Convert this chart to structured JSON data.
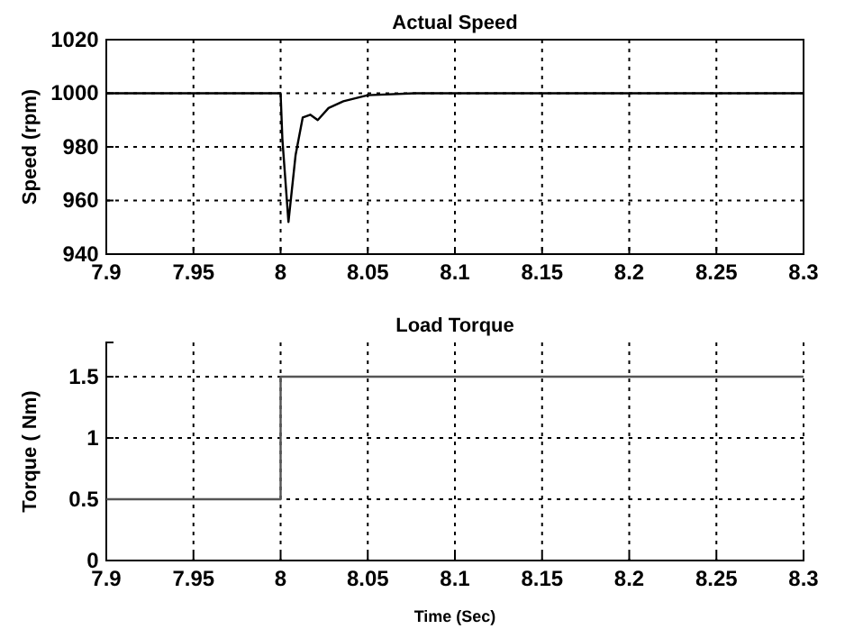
{
  "chart_data": [
    {
      "type": "line",
      "title": "Actual Speed",
      "ylabel": "Speed (rpm)",
      "xlim": [
        7.9,
        8.3
      ],
      "xticks": [
        7.9,
        7.95,
        8,
        8.05,
        8.1,
        8.15,
        8.2,
        8.25,
        8.3
      ],
      "ylim": [
        940,
        1020
      ],
      "yticks": [
        940,
        960,
        980,
        1000,
        1020
      ],
      "grid": true,
      "line_style": "solid",
      "marker": "none",
      "series": [
        {
          "color": "#000000",
          "x": [
            7.9,
            8,
            8.001,
            8.0045,
            8.0086,
            8.0127,
            8.017,
            8.0213,
            8.0275,
            8.036,
            8.05,
            8.077,
            8.3
          ],
          "values": [
            1000,
            1000,
            983,
            952,
            977,
            991,
            992,
            990,
            994.5,
            997,
            999.3,
            1000,
            1000
          ]
        }
      ]
    },
    {
      "type": "step",
      "title": "Load Torque",
      "xlabel": "Time (Sec)",
      "ylabel": "Torque ( Nm)",
      "xlim": [
        7.9,
        8.3
      ],
      "xticks": [
        7.9,
        7.95,
        8,
        8.05,
        8.1,
        8.15,
        8.2,
        8.25,
        8.3
      ],
      "ylim": [
        0,
        1.78
      ],
      "yticks": [
        0,
        0.5,
        1,
        1.5
      ],
      "grid": true,
      "line_style": "solid",
      "marker": "none",
      "series": [
        {
          "color": "#555555",
          "x": [
            7.9,
            8,
            8.3
          ],
          "values": [
            0.5,
            1.5,
            1.5
          ]
        }
      ]
    }
  ]
}
